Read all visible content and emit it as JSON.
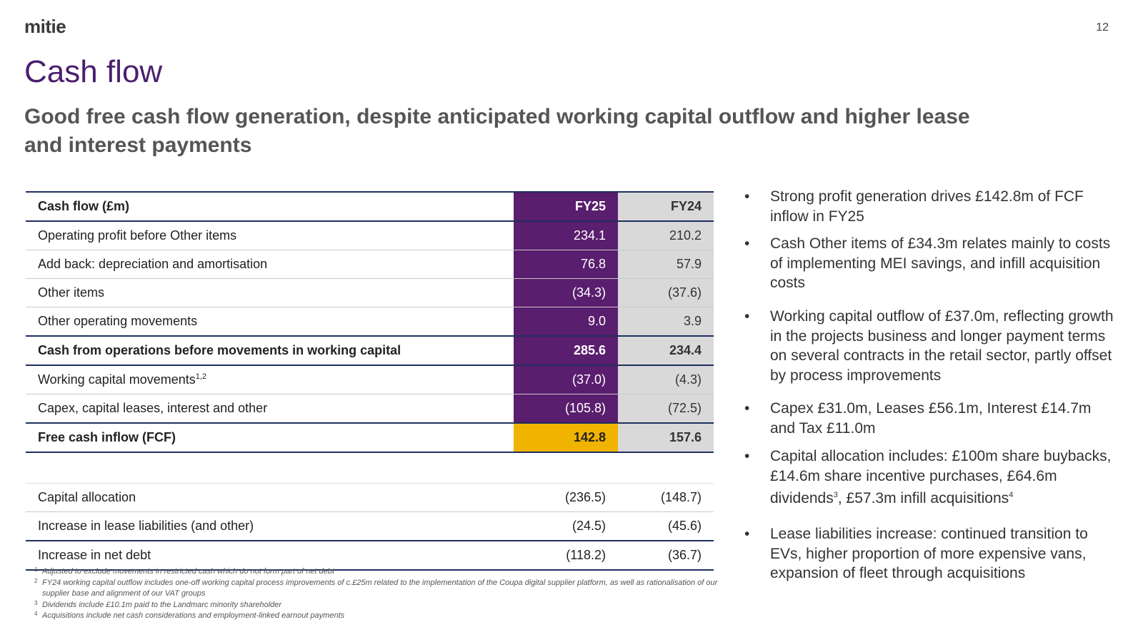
{
  "header": {
    "logo": "mitie",
    "page_number": "12"
  },
  "title": "Cash flow",
  "subtitle": "Good free cash flow generation, despite anticipated working capital outflow and higher lease and interest payments",
  "table": {
    "header": {
      "label": "Cash flow (£m)",
      "fy25": "FY25",
      "fy24": "FY24"
    },
    "rows": [
      {
        "label": "Operating profit before Other items",
        "fy25": "234.1",
        "fy24": "210.2"
      },
      {
        "label": "Add back: depreciation and amortisation",
        "fy25": "76.8",
        "fy24": "57.9"
      },
      {
        "label": "Other items",
        "fy25": "(34.3)",
        "fy24": "(37.6)"
      },
      {
        "label": "Other operating movements",
        "fy25": "9.0",
        "fy24": "3.9"
      },
      {
        "label": "Cash from operations before movements in working capital",
        "fy25": "285.6",
        "fy24": "234.4"
      },
      {
        "label": "Working capital movements",
        "label_sup": "1,2",
        "fy25": "(37.0)",
        "fy24": "(4.3)"
      },
      {
        "label": "Capex, capital leases, interest and other",
        "fy25": "(105.8)",
        "fy24": "(72.5)"
      },
      {
        "label": "Free cash inflow (FCF)",
        "fy25": "142.8",
        "fy24": "157.6"
      },
      {
        "label": "Capital allocation",
        "fy25": "(236.5)",
        "fy24": "(148.7)"
      },
      {
        "label": "Increase in lease liabilities (and other)",
        "fy25": "(24.5)",
        "fy24": "(45.6)"
      },
      {
        "label": "Increase in net debt",
        "fy25": "(118.2)",
        "fy24": "(36.7)"
      }
    ]
  },
  "bullets": [
    {
      "text": "Strong profit generation drives £142.8m of FCF inflow in FY25"
    },
    {
      "text": "Cash Other items of £34.3m relates mainly to costs of implementing MEI savings, and infill acquisition costs"
    },
    {
      "text": "Working capital outflow of £37.0m, reflecting growth in the projects business and longer payment terms on several contracts in the retail sector, partly offset by process improvements"
    },
    {
      "text": "Capex £31.0m, Leases £56.1m, Interest £14.7m and Tax £11.0m"
    },
    {
      "text_a": "Capital allocation includes: £100m share buybacks, £14.6m share incentive purchases, £64.6m dividends",
      "sup_a": "3",
      "text_b": ", £57.3m infill acquisitions",
      "sup_b": "4"
    },
    {
      "text": "Lease liabilities increase: continued transition to EVs, higher proportion of more expensive vans, expansion of fleet through acquisitions"
    }
  ],
  "footnotes": [
    {
      "num": "1",
      "text": "Adjusted to exclude movements in restricted cash which do not form part of net debt"
    },
    {
      "num": "2",
      "text": "FY24 working capital outflow includes one-off working capital process improvements of c.£25m related to the implementation of the Coupa digital supplier platform, as well as rationalisation of our supplier base and alignment of our VAT groups"
    },
    {
      "num": "3",
      "text": "Dividends include £10.1m paid to the Landmarc minority shareholder"
    },
    {
      "num": "4",
      "text": "Acquisitions include net cash considerations and employment-linked earnout payments"
    }
  ],
  "colors": {
    "purple": "#5a1e6e",
    "title_purple": "#4b1e6e",
    "gold": "#f0b400",
    "grey": "#d9d9d9",
    "navy": "#1f2f5e"
  }
}
